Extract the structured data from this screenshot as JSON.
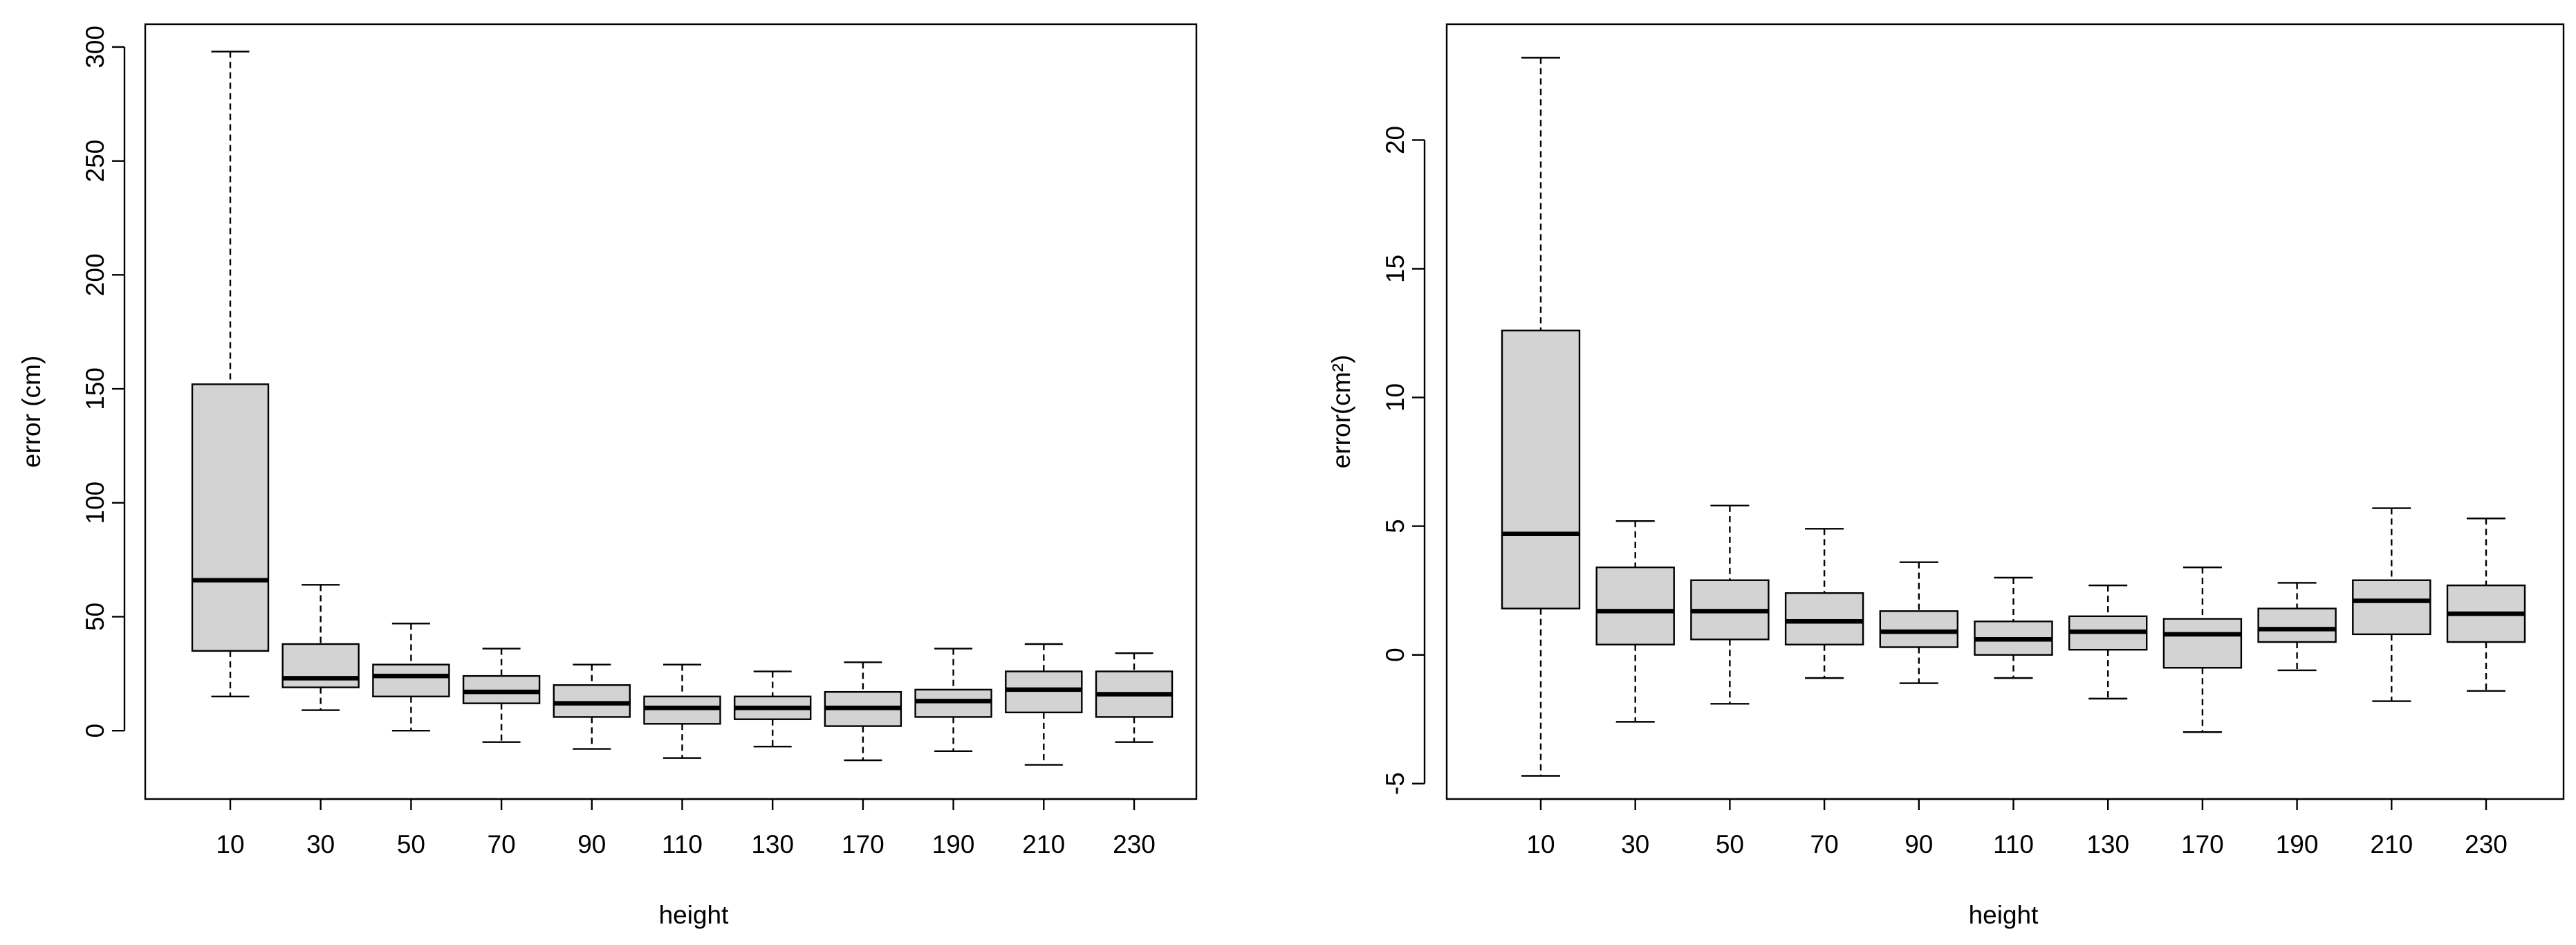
{
  "chart_data": [
    {
      "type": "boxplot",
      "xlabel": "height",
      "ylabel": "error (cm)",
      "ylim": [
        -30,
        310
      ],
      "yticks": [
        0,
        50,
        100,
        150,
        200,
        250,
        300
      ],
      "categories": [
        "10",
        "30",
        "50",
        "70",
        "90",
        "110",
        "130",
        "170",
        "190",
        "210",
        "230"
      ],
      "boxes": [
        {
          "lower": 15,
          "q1": 35,
          "median": 66,
          "q3": 152,
          "upper": 298
        },
        {
          "lower": 9,
          "q1": 19,
          "median": 23,
          "q3": 38,
          "upper": 64
        },
        {
          "lower": 0,
          "q1": 15,
          "median": 24,
          "q3": 29,
          "upper": 47
        },
        {
          "lower": -5,
          "q1": 12,
          "median": 17,
          "q3": 24,
          "upper": 36
        },
        {
          "lower": -8,
          "q1": 6,
          "median": 12,
          "q3": 20,
          "upper": 29
        },
        {
          "lower": -12,
          "q1": 3,
          "median": 10,
          "q3": 15,
          "upper": 29
        },
        {
          "lower": -7,
          "q1": 5,
          "median": 10,
          "q3": 15,
          "upper": 26
        },
        {
          "lower": -13,
          "q1": 2,
          "median": 10,
          "q3": 17,
          "upper": 30
        },
        {
          "lower": -9,
          "q1": 6,
          "median": 13,
          "q3": 18,
          "upper": 36
        },
        {
          "lower": -15,
          "q1": 8,
          "median": 18,
          "q3": 26,
          "upper": 38
        },
        {
          "lower": -5,
          "q1": 6,
          "median": 16,
          "q3": 26,
          "upper": 34
        }
      ]
    },
    {
      "type": "boxplot",
      "xlabel": "height",
      "ylabel": "error(cm²)",
      "ylim": [
        -5.6,
        24.5
      ],
      "yticks": [
        -5,
        0,
        5,
        10,
        15,
        20
      ],
      "categories": [
        "10",
        "30",
        "50",
        "70",
        "90",
        "110",
        "130",
        "170",
        "190",
        "210",
        "230"
      ],
      "boxes": [
        {
          "lower": -4.7,
          "q1": 1.8,
          "median": 4.7,
          "q3": 12.6,
          "upper": 23.2
        },
        {
          "lower": -2.6,
          "q1": 0.4,
          "median": 1.7,
          "q3": 3.4,
          "upper": 5.2
        },
        {
          "lower": -1.9,
          "q1": 0.6,
          "median": 1.7,
          "q3": 2.9,
          "upper": 5.8
        },
        {
          "lower": -0.9,
          "q1": 0.4,
          "median": 1.3,
          "q3": 2.4,
          "upper": 4.9
        },
        {
          "lower": -1.1,
          "q1": 0.3,
          "median": 0.9,
          "q3": 1.7,
          "upper": 3.6
        },
        {
          "lower": -0.9,
          "q1": 0.0,
          "median": 0.6,
          "q3": 1.3,
          "upper": 3.0
        },
        {
          "lower": -1.7,
          "q1": 0.2,
          "median": 0.9,
          "q3": 1.5,
          "upper": 2.7
        },
        {
          "lower": -3.0,
          "q1": -0.5,
          "median": 0.8,
          "q3": 1.4,
          "upper": 3.4
        },
        {
          "lower": -0.6,
          "q1": 0.5,
          "median": 1.0,
          "q3": 1.8,
          "upper": 2.8
        },
        {
          "lower": -1.8,
          "q1": 0.8,
          "median": 2.1,
          "q3": 2.9,
          "upper": 5.7
        },
        {
          "lower": -1.4,
          "q1": 0.5,
          "median": 1.6,
          "q3": 2.7,
          "upper": 5.3
        }
      ]
    }
  ]
}
